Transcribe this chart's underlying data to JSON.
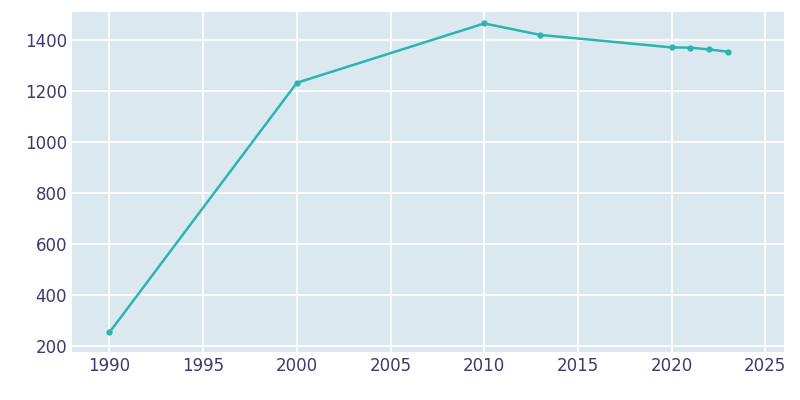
{
  "years": [
    1990,
    2000,
    2010,
    2013,
    2020,
    2021,
    2022,
    2023
  ],
  "population": [
    252,
    1232,
    1465,
    1420,
    1371,
    1370,
    1363,
    1354
  ],
  "line_color": "#2ab5b0",
  "marker": "o",
  "marker_size": 3.5,
  "line_width": 1.8,
  "background_color": "#dce8f0",
  "fig_background_color": "#ffffff",
  "grid_color": "#ffffff",
  "xlim": [
    1988,
    2026
  ],
  "ylim": [
    175,
    1510
  ],
  "xticks": [
    1990,
    1995,
    2000,
    2005,
    2010,
    2015,
    2020,
    2025
  ],
  "yticks": [
    200,
    400,
    600,
    800,
    1000,
    1200,
    1400
  ],
  "tick_label_color": "#3a3a6e",
  "tick_fontsize": 12
}
